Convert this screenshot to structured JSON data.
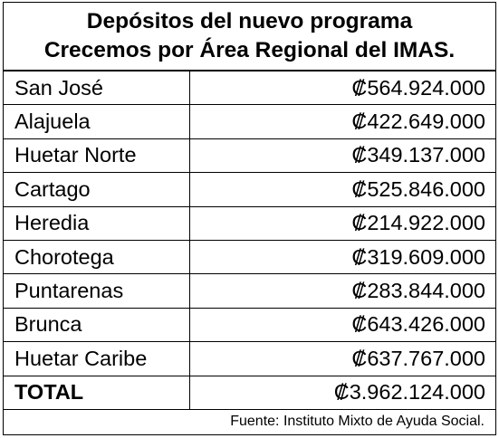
{
  "title": {
    "line1": "Depósitos del nuevo programa",
    "line2": "Crecemos por Área Regional del IMAS."
  },
  "rows": [
    {
      "region": "San José",
      "amount": "₡564.924.000"
    },
    {
      "region": "Alajuela",
      "amount": "₡422.649.000"
    },
    {
      "region": "Huetar Norte",
      "amount": "₡349.137.000"
    },
    {
      "region": "Cartago",
      "amount": "₡525.846.000"
    },
    {
      "region": "Heredia",
      "amount": "₡214.922.000"
    },
    {
      "region": "Chorotega",
      "amount": "₡319.609.000"
    },
    {
      "region": "Puntarenas",
      "amount": "₡283.844.000"
    },
    {
      "region": "Brunca",
      "amount": "₡643.426.000"
    },
    {
      "region": "Huetar Caribe",
      "amount": "₡637.767.000"
    }
  ],
  "total": {
    "label": "TOTAL",
    "amount": "₡3.962.124.000"
  },
  "source": "Fuente: Instituto Mixto de Ayuda Social."
}
